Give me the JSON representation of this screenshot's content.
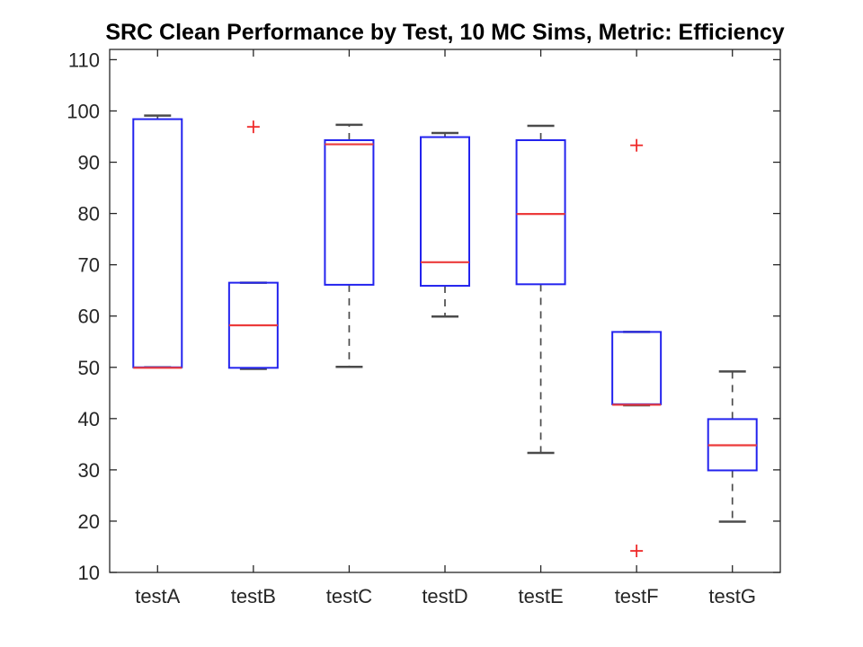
{
  "chart_data": {
    "type": "boxplot",
    "title": "SRC Clean Performance by Test, 10 MC Sims, Metric: Efficiency",
    "xlabel": "",
    "ylabel": "",
    "ylim": [
      10,
      112
    ],
    "yticks": [
      10,
      20,
      30,
      40,
      50,
      60,
      70,
      80,
      90,
      100,
      110
    ],
    "grid": false,
    "categories": [
      "testA",
      "testB",
      "testC",
      "testD",
      "testE",
      "testF",
      "testG"
    ],
    "boxes": [
      {
        "label": "testA",
        "whislo": 50.0,
        "q1": 50.0,
        "med": 49.9,
        "q3": 98.4,
        "whishi": 99.1,
        "outliers": []
      },
      {
        "label": "testB",
        "whislo": 49.7,
        "q1": 49.9,
        "med": 58.2,
        "q3": 66.5,
        "whishi": 66.5,
        "outliers": [
          96.9
        ]
      },
      {
        "label": "testC",
        "whislo": 50.1,
        "q1": 66.1,
        "med": 93.5,
        "q3": 94.3,
        "whishi": 97.3,
        "outliers": []
      },
      {
        "label": "testD",
        "whislo": 59.9,
        "q1": 65.9,
        "med": 70.5,
        "q3": 94.9,
        "whishi": 95.7,
        "outliers": []
      },
      {
        "label": "testE",
        "whislo": 33.3,
        "q1": 66.2,
        "med": 79.9,
        "q3": 94.3,
        "whishi": 97.1,
        "outliers": []
      },
      {
        "label": "testF",
        "whislo": 42.6,
        "q1": 42.8,
        "med": 42.7,
        "q3": 56.9,
        "whishi": 56.9,
        "outliers": [
          93.3,
          14.2
        ]
      },
      {
        "label": "testG",
        "whislo": 19.9,
        "q1": 29.9,
        "med": 34.8,
        "q3": 39.9,
        "whishi": 49.2,
        "outliers": []
      }
    ],
    "colors": {
      "box": "#2323ee",
      "median": "#ec3b3b",
      "whisker": "#4b4b4b",
      "outlier": "#ef2929",
      "axis": "#262626",
      "title": "#000000"
    }
  }
}
